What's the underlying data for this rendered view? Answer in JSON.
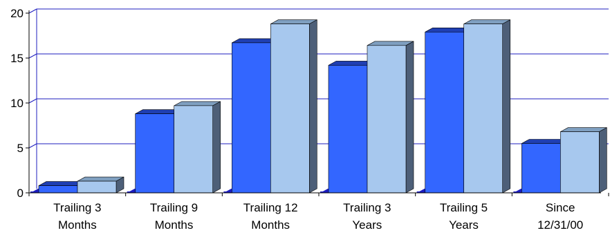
{
  "chart_data": {
    "type": "bar",
    "title": "",
    "xlabel": "",
    "ylabel": "",
    "ylim": [
      0,
      20
    ],
    "yticks": [
      "0",
      "5",
      "10",
      "15",
      "20"
    ],
    "grid": true,
    "style": "3d-clustered-column",
    "categories": [
      [
        "Trailing 3",
        "Months"
      ],
      [
        "Trailing  9",
        "Months"
      ],
      [
        "Trailing  12",
        "Months"
      ],
      [
        "Trailing 3",
        "Years"
      ],
      [
        "Trailing 5",
        "Years"
      ],
      [
        "Since",
        "12/31/00"
      ]
    ],
    "series": [
      {
        "values": [
          0.8,
          8.8,
          16.7,
          14.2,
          17.9,
          5.5
        ]
      },
      {
        "values": [
          1.3,
          9.7,
          18.8,
          16.4,
          18.8,
          6.8
        ]
      }
    ]
  },
  "colors": {
    "series": [
      {
        "front": "#3366ff",
        "top": "#1f3fb3",
        "side": "#1a2f80"
      },
      {
        "front": "#a7c8ee",
        "top": "#7f9fc0",
        "side": "#4d5f78"
      }
    ],
    "gridline": "#1c1cbf",
    "axis": "#000000",
    "floor": "#1c1cbf"
  }
}
